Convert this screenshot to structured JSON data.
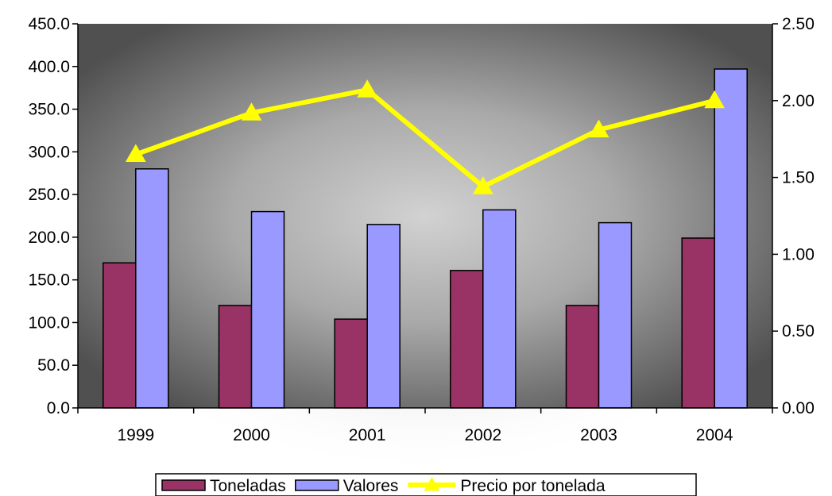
{
  "chart_data": {
    "type": "bar",
    "categories": [
      "1999",
      "2000",
      "2001",
      "2002",
      "2003",
      "2004"
    ],
    "series": [
      {
        "name": "Toneladas",
        "kind": "bar",
        "axis": "left",
        "color": "#993366",
        "values": [
          170,
          120,
          104,
          161,
          120,
          199
        ]
      },
      {
        "name": "Valores",
        "kind": "bar",
        "axis": "left",
        "color": "#9999FF",
        "values": [
          280,
          230,
          215,
          232,
          217,
          397
        ]
      },
      {
        "name": "Precio por tonelada",
        "kind": "line",
        "axis": "right",
        "color": "#FFFF00",
        "marker": "triangle",
        "values": [
          1.65,
          1.92,
          2.07,
          1.44,
          1.81,
          2.0
        ]
      }
    ],
    "y_left": {
      "min": 0,
      "max": 450,
      "step": 50,
      "tick_labels": [
        "0.0",
        "50.0",
        "100.0",
        "150.0",
        "200.0",
        "250.0",
        "300.0",
        "350.0",
        "400.0",
        "450.0"
      ]
    },
    "y_right": {
      "min": 0,
      "max": 2.5,
      "step": 0.5,
      "tick_labels": [
        "0.00",
        "0.50",
        "1.00",
        "1.50",
        "2.00",
        "2.50"
      ]
    },
    "title": "",
    "xlabel": "",
    "ylabel": "",
    "grid": false,
    "legend_position": "bottom",
    "plot_background": "radial gradient, light gray center to dark gray edges"
  }
}
